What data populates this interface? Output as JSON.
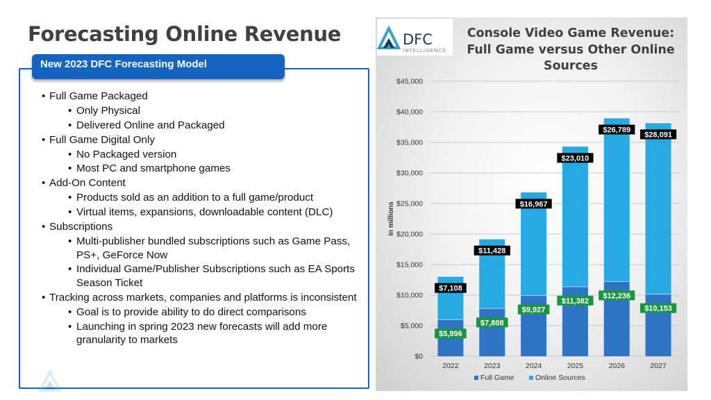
{
  "slide": {
    "title": "Forecasting Online Revenue",
    "model_heading": "New 2023 DFC Forecasting Model",
    "bullets": [
      {
        "level": 1,
        "text": "Full Game Packaged"
      },
      {
        "level": 2,
        "text": "Only Physical"
      },
      {
        "level": 2,
        "text": "Delivered Online and Packaged"
      },
      {
        "level": 1,
        "text": "Full Game Digital Only"
      },
      {
        "level": 2,
        "text": "No Packaged version"
      },
      {
        "level": 2,
        "text": "Most PC and smartphone games"
      },
      {
        "level": 1,
        "text": "Add-On Content"
      },
      {
        "level": 2,
        "text": "Products sold as an addition to a full game/product"
      },
      {
        "level": 2,
        "text": "Virtual items, expansions, downloadable content (DLC)"
      },
      {
        "level": 1,
        "text": "Subscriptions"
      },
      {
        "level": 2,
        "text": "Multi-publisher bundled subscriptions such as Game Pass, PS+, GeForce Now"
      },
      {
        "level": 2,
        "text": "Individual Game/Publisher Subscriptions such as EA Sports Season Ticket"
      },
      {
        "level": 1,
        "text": "Tracking across markets, companies and platforms is inconsistent"
      },
      {
        "level": 2,
        "text": "Goal is to provide ability to do direct comparisons"
      },
      {
        "level": 2,
        "text": "Launching in spring 2023 new forecasts will add more granularity to markets"
      }
    ]
  },
  "logo": {
    "name": "DFC",
    "tagline": "INTELLIGENCE",
    "colors": {
      "navy": "#17375e",
      "teal": "#3aa0c8",
      "gray": "#7f8c8d"
    }
  },
  "chart_data": {
    "type": "bar",
    "stacked": true,
    "title": "Console Video Game Revenue: Full Game versus Other Online Sources",
    "ylabel": "in millions",
    "xlabel": "",
    "categories": [
      "2022",
      "2023",
      "2024",
      "2025",
      "2026",
      "2027"
    ],
    "series": [
      {
        "name": "Full Game",
        "color": "#2e75c6",
        "values": [
          5996,
          7808,
          9927,
          11382,
          12236,
          10153
        ],
        "labels": [
          "$5,996",
          "$7,808",
          "$9,927",
          "$11,382",
          "$12,236",
          "$10,153"
        ],
        "label_bg": "#1a9641"
      },
      {
        "name": "Online Sources",
        "color": "#27aae1",
        "values": [
          7108,
          11428,
          16967,
          23010,
          26789,
          28091
        ],
        "labels": [
          "$7,108",
          "$11,428",
          "$16,967",
          "$23,010",
          "$26,789",
          "$28,091"
        ],
        "label_bg": "#000000"
      }
    ],
    "ylim": [
      0,
      45000
    ],
    "yticks": [
      0,
      5000,
      10000,
      15000,
      20000,
      25000,
      30000,
      35000,
      40000,
      45000
    ],
    "ytick_labels": [
      "$0",
      "$5,000",
      "$10,000",
      "$15,000",
      "$20,000",
      "$25,000",
      "$30,000",
      "$35,000",
      "$40,000",
      "$45,000"
    ],
    "grid": true,
    "legend": "bottom"
  }
}
